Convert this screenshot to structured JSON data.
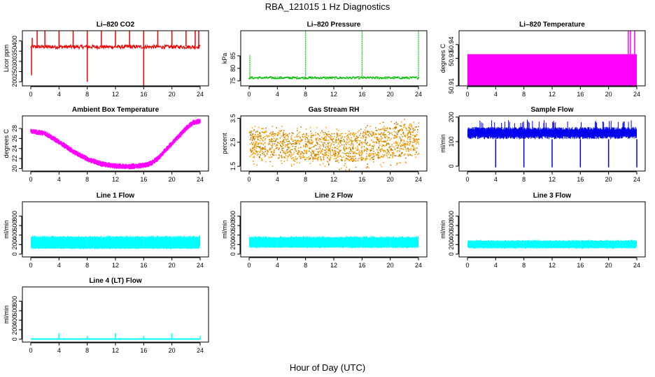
{
  "figure": {
    "title": "RBA_121015  1 Hz Diagnostics",
    "xlabel": "Hour of Day (UTC)",
    "x_ticks": [
      "0",
      "4",
      "8",
      "12",
      "16",
      "20",
      "24"
    ]
  },
  "colors": {
    "red": "#ee0000",
    "green": "#00bb00",
    "magenta": "#ff00ff",
    "orange": "#ff9900",
    "orange_edge": "#b37a00",
    "blue": "#0000ee",
    "cyan": "#00ffff"
  },
  "chart_data": [
    {
      "id": "co2",
      "type": "line",
      "title": "Li–820 CO2",
      "ylabel": "Licor ppm",
      "ylim": [
        180,
        450
      ],
      "y_ticks": [
        {
          "v": 200,
          "label": "200"
        },
        {
          "v": 250,
          "label": "250"
        },
        {
          "v": 300,
          "label": "300"
        },
        {
          "v": 350,
          "label": "350"
        },
        {
          "v": 400,
          "label": "400"
        }
      ],
      "color_key": "red",
      "style": "band",
      "baseline": 372,
      "band": [
        362,
        380
      ],
      "spikes_up": [
        {
          "x": 0.2,
          "y": 415
        },
        {
          "x": 0.9,
          "y": 455
        },
        {
          "x": 2.0,
          "y": 455
        },
        {
          "x": 4.0,
          "y": 455
        },
        {
          "x": 6.0,
          "y": 455
        },
        {
          "x": 8.0,
          "y": 455
        },
        {
          "x": 10.0,
          "y": 455
        },
        {
          "x": 12.0,
          "y": 455
        },
        {
          "x": 14.0,
          "y": 455
        },
        {
          "x": 16.0,
          "y": 455
        },
        {
          "x": 18.0,
          "y": 455
        },
        {
          "x": 20.0,
          "y": 455
        },
        {
          "x": 22.0,
          "y": 455
        },
        {
          "x": 23.3,
          "y": 455
        },
        {
          "x": 23.8,
          "y": 455
        }
      ],
      "spikes_down": [
        {
          "x": 0.1,
          "y": 232
        },
        {
          "x": 8.0,
          "y": 200
        },
        {
          "x": 16.0,
          "y": 180
        }
      ]
    },
    {
      "id": "pressure",
      "type": "line",
      "title": "Li–820 Pressure",
      "ylabel": "kPa",
      "ylim": [
        73,
        95
      ],
      "y_ticks": [
        {
          "v": 75,
          "label": "75"
        },
        {
          "v": 80,
          "label": "80"
        },
        {
          "v": 85,
          "label": "85"
        }
      ],
      "color_key": "green",
      "style": "dotted",
      "baseline": 76.2,
      "spikes_up": [
        {
          "x": 0.1,
          "y": 85.5
        },
        {
          "x": 8.0,
          "y": 95
        },
        {
          "x": 16.0,
          "y": 95
        },
        {
          "x": 24.0,
          "y": 95
        }
      ]
    },
    {
      "id": "li820temp",
      "type": "area",
      "title": "Li–820 Temperature",
      "ylabel": "degrees C",
      "ylim": [
        50.91,
        50.95
      ],
      "y_ticks": [
        {
          "v": 50.91,
          "label": "50.91"
        },
        {
          "v": 50.93,
          "label": "50.93"
        },
        {
          "v": 50.94,
          "label": "50.94"
        }
      ],
      "color_key": "magenta",
      "style": "block",
      "block": [
        0.0,
        24.0,
        50.91,
        50.933
      ],
      "spikes_up": [
        {
          "x": 22.8,
          "y": 50.95
        },
        {
          "x": 23.1,
          "y": 50.95
        },
        {
          "x": 23.7,
          "y": 50.95
        }
      ]
    },
    {
      "id": "ambient",
      "type": "line",
      "title": "Ambient Box Temperature",
      "ylabel": "degrees C",
      "ylim": [
        19.5,
        30.5
      ],
      "y_ticks": [
        {
          "v": 20,
          "label": "20"
        },
        {
          "v": 22,
          "label": "22"
        },
        {
          "v": 24,
          "label": "24"
        },
        {
          "v": 26,
          "label": "26"
        },
        {
          "v": 28,
          "label": "28"
        }
      ],
      "color_key": "magenta",
      "style": "curve",
      "thickness": 0.8,
      "curve": [
        {
          "x": 0,
          "y": 27.5
        },
        {
          "x": 2,
          "y": 27.0
        },
        {
          "x": 4,
          "y": 25.3
        },
        {
          "x": 6,
          "y": 23.4
        },
        {
          "x": 8,
          "y": 21.9
        },
        {
          "x": 10,
          "y": 20.9
        },
        {
          "x": 12,
          "y": 20.5
        },
        {
          "x": 14,
          "y": 20.4
        },
        {
          "x": 16,
          "y": 20.6
        },
        {
          "x": 17,
          "y": 21.0
        },
        {
          "x": 18,
          "y": 22.0
        },
        {
          "x": 20,
          "y": 25.0
        },
        {
          "x": 22,
          "y": 28.0
        },
        {
          "x": 23,
          "y": 29.2
        },
        {
          "x": 24,
          "y": 29.4
        }
      ]
    },
    {
      "id": "rh",
      "type": "scatter",
      "title": "Gas Stream RH",
      "ylabel": "percent",
      "ylim": [
        1.3,
        3.6
      ],
      "y_ticks": [
        {
          "v": 1.5,
          "label": "1.5"
        },
        {
          "v": 2.5,
          "label": "2.5"
        },
        {
          "v": 3.5,
          "label": "3.5"
        }
      ],
      "color_key": "orange",
      "style": "cloud",
      "curve_lo": [
        {
          "x": 0,
          "y": 1.9
        },
        {
          "x": 8,
          "y": 1.8
        },
        {
          "x": 14,
          "y": 1.7
        },
        {
          "x": 24,
          "y": 2.0
        }
      ],
      "curve_hi": [
        {
          "x": 0,
          "y": 3.0
        },
        {
          "x": 8,
          "y": 2.9
        },
        {
          "x": 14,
          "y": 2.9
        },
        {
          "x": 20,
          "y": 3.15
        },
        {
          "x": 24,
          "y": 3.35
        }
      ]
    },
    {
      "id": "sampleflow",
      "type": "line",
      "title": "Sample Flow",
      "ylabel": "ml/min",
      "ylim": [
        -20,
        205
      ],
      "y_ticks": [
        {
          "v": 0,
          "label": "0"
        },
        {
          "v": 100,
          "label": "100"
        },
        {
          "v": 200,
          "label": "200"
        }
      ],
      "color_key": "blue",
      "style": "band_spiky",
      "band": [
        110,
        160
      ],
      "spike_top": 190,
      "spikes_down": [
        {
          "x": 4.0,
          "y": -5
        },
        {
          "x": 8.0,
          "y": -5
        },
        {
          "x": 12.0,
          "y": -5
        },
        {
          "x": 16.0,
          "y": -5
        },
        {
          "x": 20.0,
          "y": -5
        },
        {
          "x": 24.0,
          "y": -5
        }
      ]
    },
    {
      "id": "line1",
      "type": "area",
      "title": "Line 1 Flow",
      "ylabel": "ml/min",
      "ylim": [
        -60,
        1100
      ],
      "y_ticks": [
        {
          "v": 0,
          "label": "0"
        },
        {
          "v": 200,
          "label": "200"
        },
        {
          "v": 400,
          "label": "400"
        },
        {
          "v": 600,
          "label": "600"
        },
        {
          "v": 800,
          "label": "800"
        }
      ],
      "color_key": "cyan",
      "style": "band",
      "band": [
        100,
        390
      ],
      "gaps": [
        4,
        8,
        12,
        16,
        20
      ]
    },
    {
      "id": "line2",
      "type": "area",
      "title": "Line 2 Flow",
      "ylabel": "ml/min",
      "ylim": [
        -60,
        1100
      ],
      "y_ticks": [
        {
          "v": 0,
          "label": "0"
        },
        {
          "v": 200,
          "label": "200"
        },
        {
          "v": 400,
          "label": "400"
        },
        {
          "v": 600,
          "label": "600"
        },
        {
          "v": 800,
          "label": "800"
        }
      ],
      "color_key": "cyan",
      "style": "band",
      "band": [
        120,
        380
      ],
      "gaps": [
        4,
        8,
        12,
        16,
        20
      ]
    },
    {
      "id": "line3",
      "type": "area",
      "title": "Line 3 Flow",
      "ylabel": "ml/min",
      "ylim": [
        -60,
        1100
      ],
      "y_ticks": [
        {
          "v": 0,
          "label": "0"
        },
        {
          "v": 200,
          "label": "200"
        },
        {
          "v": 400,
          "label": "400"
        },
        {
          "v": 600,
          "label": "600"
        },
        {
          "v": 800,
          "label": "800"
        }
      ],
      "color_key": "cyan",
      "style": "band",
      "band": [
        110,
        300
      ],
      "gaps": [
        4,
        8,
        12,
        16,
        20
      ]
    },
    {
      "id": "line4",
      "type": "line",
      "title": "Line 4 (LT) Flow",
      "ylabel": "ml/min",
      "ylim": [
        -60,
        1100
      ],
      "y_ticks": [
        {
          "v": 0,
          "label": "0"
        },
        {
          "v": 200,
          "label": "200"
        },
        {
          "v": 400,
          "label": "400"
        },
        {
          "v": 600,
          "label": "600"
        },
        {
          "v": 800,
          "label": "800"
        }
      ],
      "color_key": "cyan",
      "style": "flat",
      "baseline": 5,
      "spikes_up": [
        {
          "x": 4.0,
          "y": 130
        },
        {
          "x": 8.0,
          "y": 70
        },
        {
          "x": 12.0,
          "y": 130
        },
        {
          "x": 16.0,
          "y": 70
        },
        {
          "x": 20.0,
          "y": 130
        },
        {
          "x": 24.0,
          "y": 70
        }
      ]
    }
  ]
}
